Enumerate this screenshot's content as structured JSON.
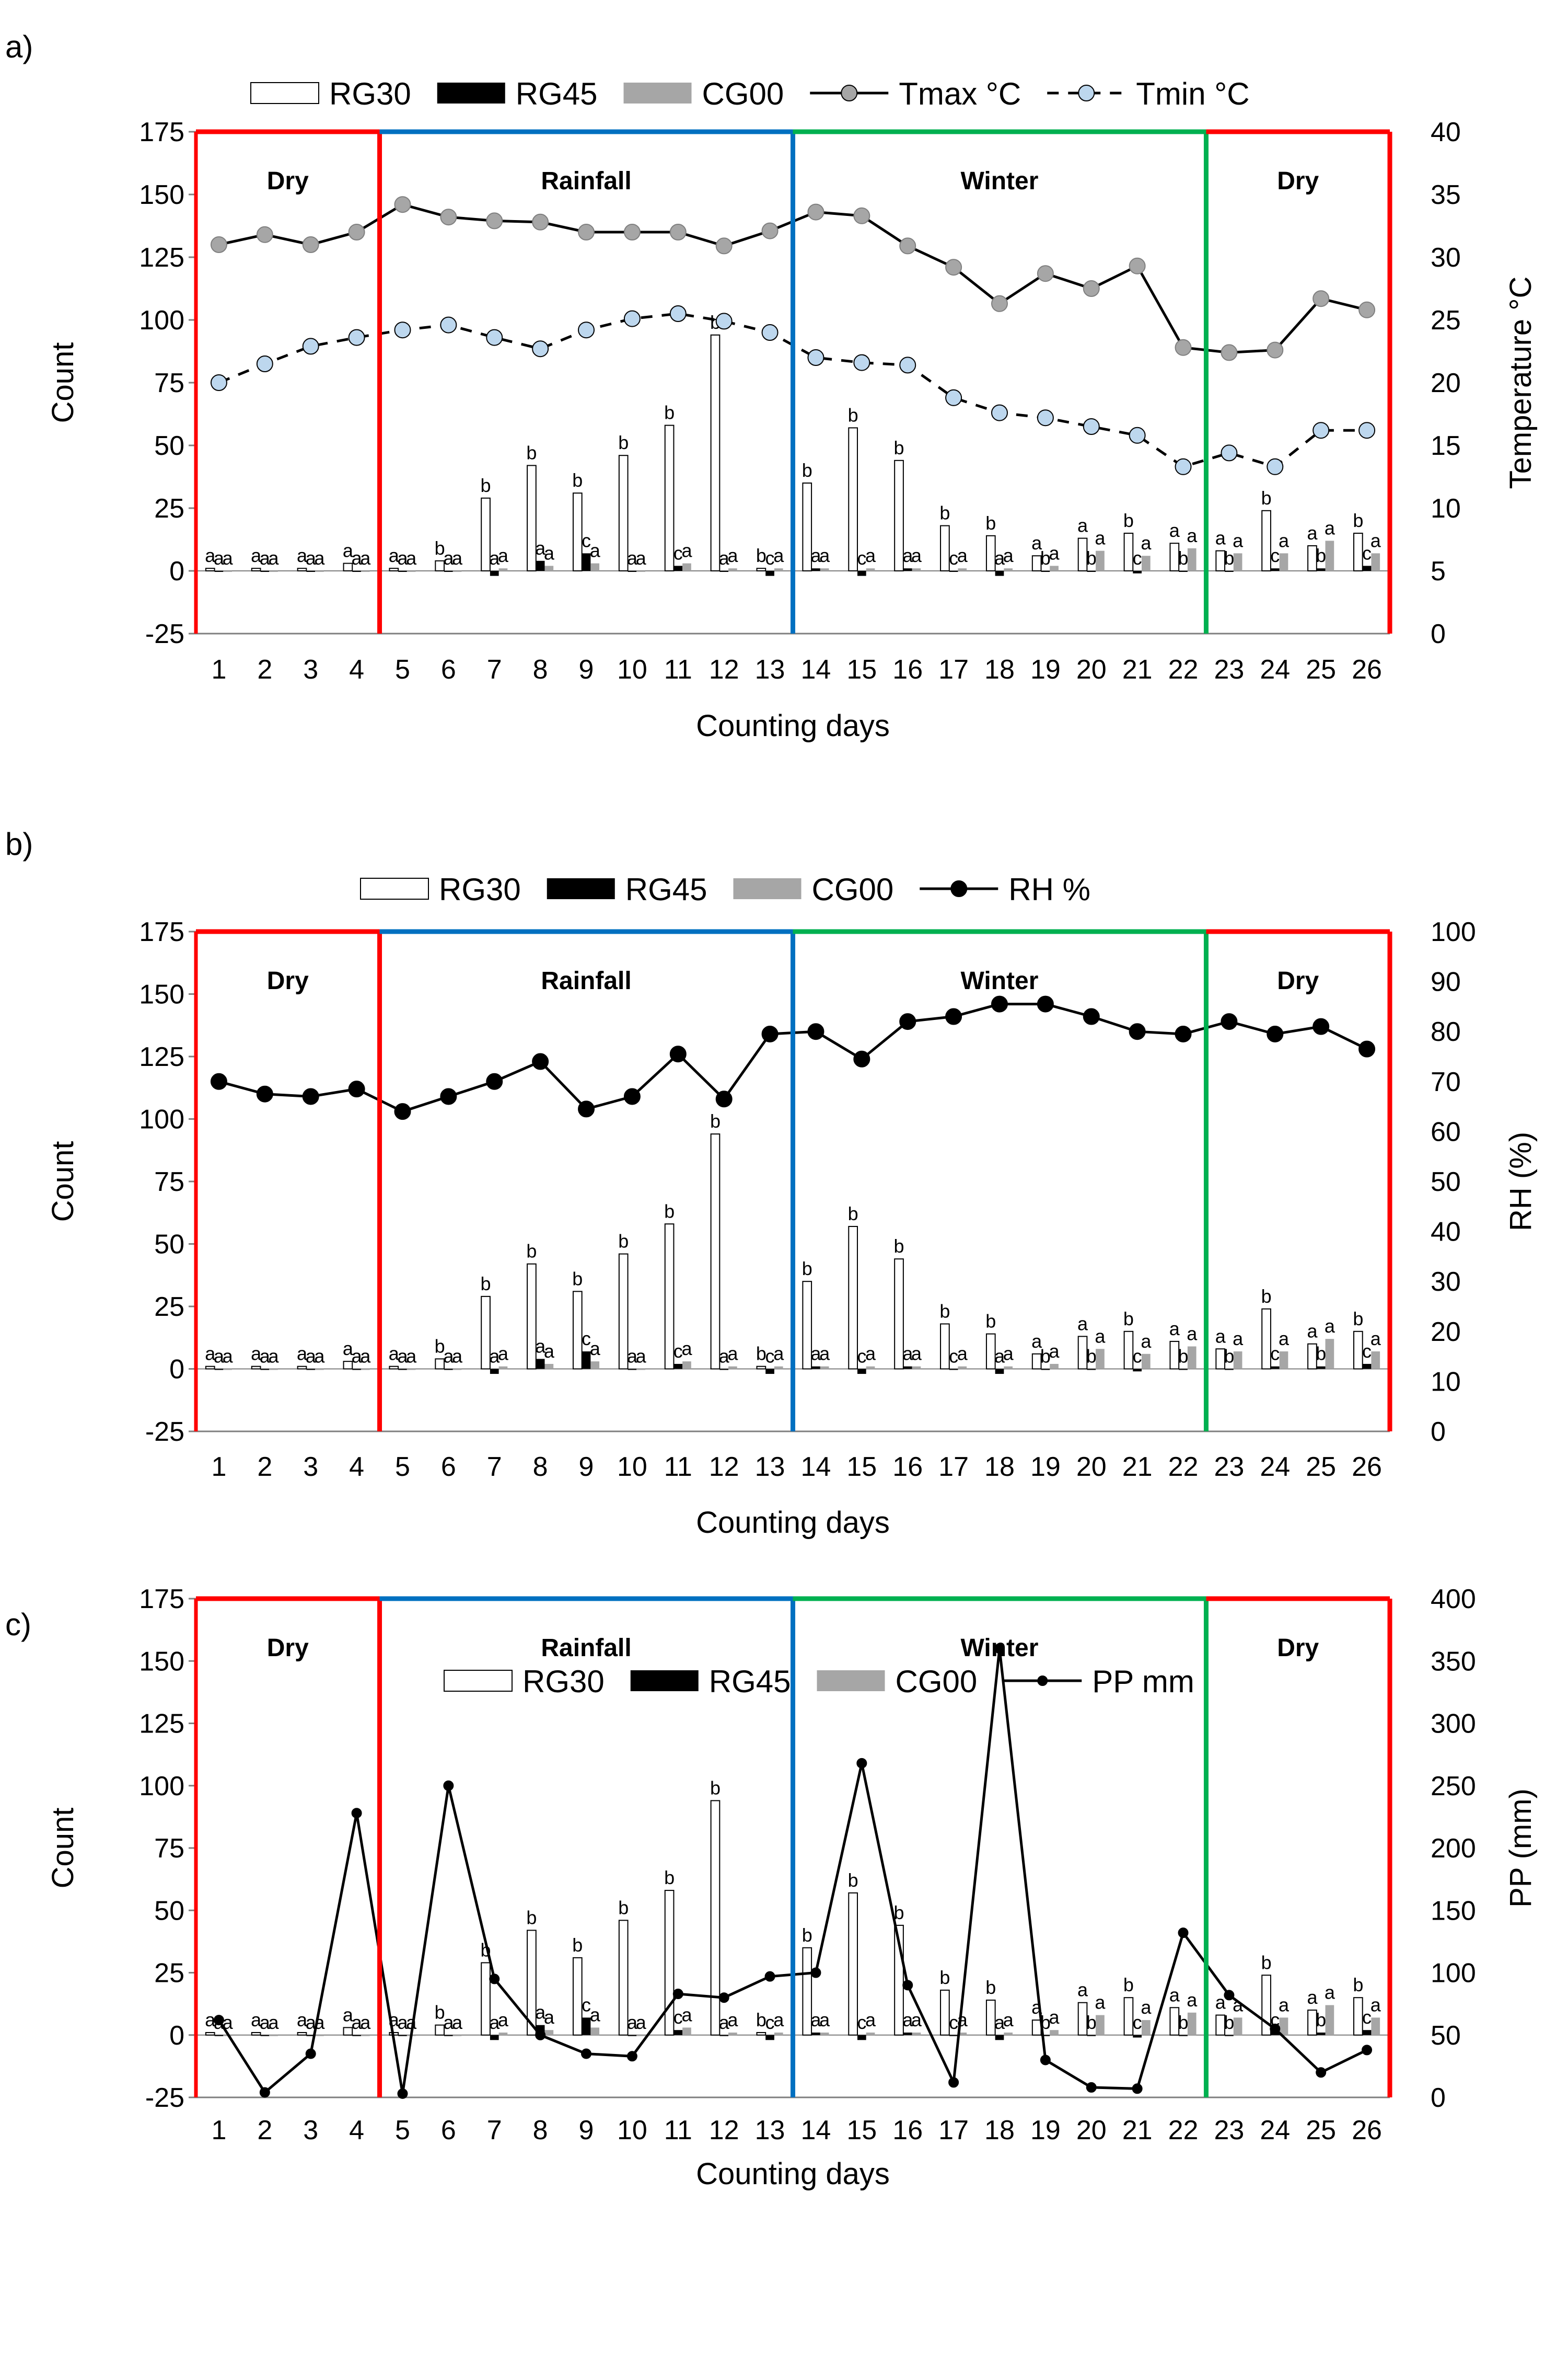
{
  "legend_symbols": {
    "RG30": "white-bar",
    "RG45": "black-bar",
    "CG00": "gray-bar",
    "Tmax": "solid-line-gray-circle",
    "Tmin": "dashed-line-lightblue-circle",
    "RH": "solid-line-black-circle",
    "PP": "solid-line-small-black-dot"
  },
  "colors": {
    "RG30": "#ffffff",
    "RG45": "#000000",
    "CG00": "#a6a6a6",
    "tmax_marker": "#a6a6a6",
    "tmin_marker": "#bdd7ee",
    "dry": "#ff0000",
    "rainfall": "#0070c0",
    "winter": "#00b050"
  },
  "chart_data": [
    {
      "panel": "a)",
      "type": "bar",
      "categories": [
        "1",
        "2",
        "3",
        "4",
        "5",
        "6",
        "7",
        "8",
        "9",
        "10",
        "11",
        "12",
        "13",
        "14",
        "15",
        "16",
        "17",
        "18",
        "19",
        "20",
        "21",
        "22",
        "23",
        "24",
        "25",
        "26"
      ],
      "xlabel": "Counting days",
      "ylabel": "Count",
      "ylim": [
        -25,
        175
      ],
      "yticks": [
        -25,
        0,
        25,
        50,
        75,
        100,
        125,
        150,
        175
      ],
      "y2label": "Temperature °C",
      "y2lim": [
        0,
        40
      ],
      "y2ticks": [
        0,
        5,
        10,
        15,
        20,
        25,
        30,
        35,
        40
      ],
      "seasons": [
        {
          "label": "Dry",
          "from": 1,
          "to": 4,
          "color": "red"
        },
        {
          "label": "Rainfall",
          "from": 5,
          "to": 13,
          "color": "blue"
        },
        {
          "label": "Winter",
          "from": 14,
          "to": 22,
          "color": "green"
        },
        {
          "label": "Dry",
          "from": 23,
          "to": 26,
          "color": "red"
        }
      ],
      "series": [
        {
          "name": "RG30",
          "kind": "bar",
          "values": [
            1,
            1,
            1,
            3,
            1,
            4,
            29,
            42,
            31,
            46,
            58,
            94,
            1,
            35,
            57,
            44,
            18,
            14,
            6,
            13,
            15,
            11,
            8,
            24,
            10,
            15
          ],
          "sig": [
            "a",
            "a",
            "a",
            "a",
            "a",
            "b",
            "b",
            "b",
            "b",
            "b",
            "b",
            "b",
            "b",
            "b",
            "b",
            "b",
            "b",
            "b",
            "a",
            "a",
            "b",
            "a",
            "a",
            "b",
            "a",
            "b"
          ]
        },
        {
          "name": "RG45",
          "kind": "bar",
          "values": [
            0,
            0,
            0,
            0,
            0,
            0,
            -2,
            4,
            7,
            0,
            2,
            0,
            -2,
            1,
            -2,
            1,
            0,
            -2,
            0,
            0,
            -1,
            0,
            0,
            1,
            1,
            2
          ],
          "sig": [
            "a",
            "a",
            "a",
            "a",
            "a",
            "a",
            "a",
            "a",
            "c",
            "a",
            "c",
            "a",
            "c",
            "a",
            "c",
            "a",
            "c",
            "a",
            "b",
            "b",
            "c",
            "b",
            "b",
            "c",
            "b",
            "c"
          ]
        },
        {
          "name": "CG00",
          "kind": "bar",
          "values": [
            0,
            0,
            0,
            0,
            0,
            0,
            1,
            2,
            3,
            0,
            3,
            1,
            1,
            1,
            1,
            1,
            1,
            1,
            2,
            8,
            6,
            9,
            7,
            7,
            12,
            7
          ],
          "sig": [
            "a",
            "a",
            "a",
            "a",
            "a",
            "a",
            "a",
            "a",
            "a",
            "a",
            "a",
            "a",
            "a",
            "a",
            "a",
            "a",
            "a",
            "a",
            "a",
            "a",
            "a",
            "a",
            "a",
            "a",
            "a",
            "a"
          ]
        },
        {
          "name": "Tmax °C",
          "kind": "line",
          "axis": "right",
          "values": [
            31,
            31.8,
            31,
            32,
            34.2,
            33.2,
            32.9,
            32.8,
            32,
            32,
            32,
            30.9,
            32.1,
            33.6,
            33.3,
            30.9,
            29.2,
            26.3,
            28.7,
            27.5,
            29.3,
            22.8,
            22.4,
            22.6,
            26.7,
            25.8
          ]
        },
        {
          "name": "Tmin °C",
          "kind": "line",
          "dashed": true,
          "axis": "right",
          "values": [
            20,
            21.5,
            22.9,
            23.6,
            24.2,
            24.6,
            23.6,
            22.7,
            24.2,
            25.1,
            25.5,
            24.9,
            24,
            22,
            21.6,
            21.4,
            18.8,
            17.6,
            17.2,
            16.5,
            15.8,
            13.3,
            14.4,
            13.3,
            16.2,
            16.2
          ]
        }
      ]
    },
    {
      "panel": "b)",
      "type": "bar",
      "categories": [
        "1",
        "2",
        "3",
        "4",
        "5",
        "6",
        "7",
        "8",
        "9",
        "10",
        "11",
        "12",
        "13",
        "14",
        "15",
        "16",
        "17",
        "18",
        "19",
        "20",
        "21",
        "22",
        "23",
        "24",
        "25",
        "26"
      ],
      "xlabel": "Counting days",
      "ylabel": "Count",
      "ylim": [
        -25,
        175
      ],
      "yticks": [
        -25,
        0,
        25,
        50,
        75,
        100,
        125,
        150,
        175
      ],
      "y2label": "RH (%)",
      "y2lim": [
        0,
        100
      ],
      "y2ticks": [
        0,
        10,
        20,
        30,
        40,
        50,
        60,
        70,
        80,
        90,
        100
      ],
      "seasons": [
        {
          "label": "Dry",
          "from": 1,
          "to": 4,
          "color": "red"
        },
        {
          "label": "Rainfall",
          "from": 5,
          "to": 13,
          "color": "blue"
        },
        {
          "label": "Winter",
          "from": 14,
          "to": 22,
          "color": "green"
        },
        {
          "label": "Dry",
          "from": 23,
          "to": 26,
          "color": "red"
        }
      ],
      "series": [
        {
          "name": "RG30",
          "kind": "bar",
          "values": [
            1,
            1,
            1,
            3,
            1,
            4,
            29,
            42,
            31,
            46,
            58,
            94,
            1,
            35,
            57,
            44,
            18,
            14,
            6,
            13,
            15,
            11,
            8,
            24,
            10,
            15
          ],
          "sig": [
            "a",
            "a",
            "a",
            "a",
            "a",
            "b",
            "b",
            "b",
            "b",
            "b",
            "b",
            "b",
            "b",
            "b",
            "b",
            "b",
            "b",
            "b",
            "a",
            "a",
            "b",
            "a",
            "a",
            "b",
            "a",
            "b"
          ]
        },
        {
          "name": "RG45",
          "kind": "bar",
          "values": [
            0,
            0,
            0,
            0,
            0,
            0,
            -2,
            4,
            7,
            0,
            2,
            0,
            -2,
            1,
            -2,
            1,
            0,
            -2,
            0,
            0,
            -1,
            0,
            0,
            1,
            1,
            2
          ],
          "sig": [
            "a",
            "a",
            "a",
            "a",
            "a",
            "a",
            "a",
            "a",
            "c",
            "a",
            "c",
            "a",
            "c",
            "a",
            "c",
            "a",
            "c",
            "a",
            "b",
            "b",
            "c",
            "b",
            "b",
            "c",
            "b",
            "c"
          ]
        },
        {
          "name": "CG00",
          "kind": "bar",
          "values": [
            0,
            0,
            0,
            0,
            0,
            0,
            1,
            2,
            3,
            0,
            3,
            1,
            1,
            1,
            1,
            1,
            1,
            1,
            2,
            8,
            6,
            9,
            7,
            7,
            12,
            7
          ],
          "sig": [
            "a",
            "a",
            "a",
            "a",
            "a",
            "a",
            "a",
            "a",
            "a",
            "a",
            "a",
            "a",
            "a",
            "a",
            "a",
            "a",
            "a",
            "a",
            "a",
            "a",
            "a",
            "a",
            "a",
            "a",
            "a",
            "a"
          ]
        },
        {
          "name": "RH %",
          "kind": "line",
          "axis": "right",
          "values": [
            70,
            67.5,
            67,
            68.5,
            64,
            67,
            70,
            74,
            64.5,
            67,
            75.5,
            66.5,
            79.5,
            80,
            74.5,
            82,
            83,
            85.5,
            85.5,
            83,
            80,
            79.5,
            82,
            79.5,
            81,
            76.5
          ]
        }
      ]
    },
    {
      "panel": "c)",
      "type": "bar",
      "categories": [
        "1",
        "2",
        "3",
        "4",
        "5",
        "6",
        "7",
        "8",
        "9",
        "10",
        "11",
        "12",
        "13",
        "14",
        "15",
        "16",
        "17",
        "18",
        "19",
        "20",
        "21",
        "22",
        "23",
        "24",
        "25",
        "26"
      ],
      "xlabel": "Counting days",
      "ylabel": "Count",
      "ylim": [
        -25,
        175
      ],
      "yticks": [
        -25,
        0,
        25,
        50,
        75,
        100,
        125,
        150,
        175
      ],
      "y2label": "PP (mm)",
      "y2lim": [
        0,
        400
      ],
      "y2ticks": [
        0,
        50,
        100,
        150,
        200,
        250,
        300,
        350,
        400
      ],
      "seasons": [
        {
          "label": "Dry",
          "from": 1,
          "to": 4,
          "color": "red"
        },
        {
          "label": "Rainfall",
          "from": 5,
          "to": 13,
          "color": "blue"
        },
        {
          "label": "Winter",
          "from": 14,
          "to": 22,
          "color": "green"
        },
        {
          "label": "Dry",
          "from": 23,
          "to": 26,
          "color": "red"
        }
      ],
      "series": [
        {
          "name": "RG30",
          "kind": "bar",
          "values": [
            1,
            1,
            1,
            3,
            1,
            4,
            29,
            42,
            31,
            46,
            58,
            94,
            1,
            35,
            57,
            44,
            18,
            14,
            6,
            13,
            15,
            11,
            8,
            24,
            10,
            15
          ],
          "sig": [
            "a",
            "a",
            "a",
            "a",
            "a",
            "b",
            "b",
            "b",
            "b",
            "b",
            "b",
            "b",
            "b",
            "b",
            "b",
            "b",
            "b",
            "b",
            "a",
            "a",
            "b",
            "a",
            "a",
            "b",
            "a",
            "b"
          ]
        },
        {
          "name": "RG45",
          "kind": "bar",
          "values": [
            0,
            0,
            0,
            0,
            0,
            0,
            -2,
            4,
            7,
            0,
            2,
            0,
            -2,
            1,
            -2,
            1,
            0,
            -2,
            0,
            0,
            -1,
            0,
            0,
            1,
            1,
            2
          ],
          "sig": [
            "a",
            "a",
            "a",
            "a",
            "a",
            "a",
            "a",
            "a",
            "c",
            "a",
            "c",
            "a",
            "c",
            "a",
            "c",
            "a",
            "c",
            "a",
            "b",
            "b",
            "c",
            "b",
            "b",
            "c",
            "b",
            "c"
          ]
        },
        {
          "name": "CG00",
          "kind": "bar",
          "values": [
            0,
            0,
            0,
            0,
            0,
            0,
            1,
            2,
            3,
            0,
            3,
            1,
            1,
            1,
            1,
            1,
            1,
            1,
            2,
            8,
            6,
            9,
            7,
            7,
            12,
            7
          ],
          "sig": [
            "a",
            "a",
            "a",
            "a",
            "a",
            "a",
            "a",
            "a",
            "a",
            "a",
            "a",
            "a",
            "a",
            "a",
            "a",
            "a",
            "a",
            "a",
            "a",
            "a",
            "a",
            "a",
            "a",
            "a",
            "a",
            "a"
          ]
        },
        {
          "name": "PP mm",
          "kind": "line",
          "axis": "right",
          "values": [
            62,
            4,
            35,
            228,
            3,
            250,
            95,
            50,
            35,
            33,
            83,
            80,
            97,
            100,
            268,
            90,
            12,
            360,
            30,
            8,
            7,
            132,
            82,
            55,
            20,
            38
          ]
        }
      ]
    }
  ]
}
